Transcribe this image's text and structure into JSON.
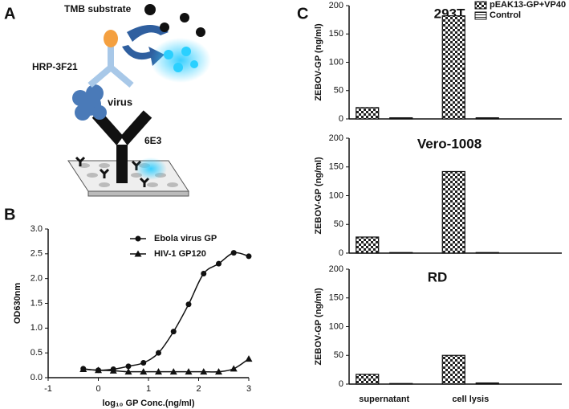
{
  "panels": [
    "A",
    "B",
    "C"
  ],
  "diagram": {
    "labels": [
      "TMB substrate",
      "HRP-3F21",
      "virus",
      "6E3"
    ]
  },
  "chart_data": [
    {
      "type": "scatter",
      "xlabel": "log₁₀ GP Conc.(ng/ml)",
      "ylabel": "OD630nm",
      "x": [
        -0.3,
        0,
        0.3,
        0.6,
        0.9,
        1.2,
        1.5,
        1.8,
        2.1,
        2.4,
        2.7,
        3.0
      ],
      "series": [
        {
          "name": "Ebola virus GP",
          "color": "#111111",
          "marker": "circle",
          "values": [
            0.18,
            0.15,
            0.17,
            0.23,
            0.3,
            0.5,
            0.93,
            1.48,
            2.1,
            2.3,
            2.52,
            2.45
          ]
        },
        {
          "name": "HIV-1 GP120",
          "color": "#111111",
          "marker": "triangle",
          "values": [
            0.17,
            0.15,
            0.14,
            0.12,
            0.12,
            0.12,
            0.12,
            0.12,
            0.12,
            0.12,
            0.18,
            0.38
          ]
        }
      ],
      "xlim": [
        -1,
        3
      ],
      "xticks": [
        -1,
        0,
        1,
        2,
        3
      ],
      "ylim": [
        0,
        3
      ],
      "yticks": [
        {
          "value": 0,
          "label": "0.0"
        },
        0.5,
        {
          "value": 1,
          "label": "1.0"
        },
        1.5,
        {
          "value": 2,
          "label": "2.0"
        },
        2.5,
        {
          "value": 3,
          "label": "3.0"
        }
      ]
    },
    {
      "type": "bar",
      "title": "293T",
      "ylabel": "ZEBOV-GP (ng/ml)",
      "categories": [
        null,
        null
      ],
      "series": [
        {
          "name": "pEAK13-GP+VP40",
          "color": "#111111",
          "pattern": "checker",
          "values": [
            20,
            182
          ]
        },
        {
          "name": "Control",
          "color": "#111111",
          "pattern": "hlines",
          "values": [
            2,
            2
          ]
        }
      ],
      "ylim": [
        0,
        200
      ],
      "yticks": [
        0,
        50,
        100,
        150,
        200
      ]
    },
    {
      "type": "bar",
      "title": "Vero-1008",
      "ylabel": "ZEBOV-GP (ng/ml)",
      "categories": [
        null,
        null
      ],
      "series": [
        {
          "color": "#111111",
          "pattern": "checker",
          "values": [
            28,
            142
          ]
        },
        {
          "color": "#111111",
          "pattern": "hlines",
          "values": [
            1,
            1
          ]
        }
      ],
      "ylim": [
        0,
        200
      ],
      "yticks": [
        0,
        50,
        100,
        150,
        200
      ]
    },
    {
      "type": "bar",
      "title": "RD",
      "ylabel": "ZEBOV-GP (ng/ml)",
      "categories": [
        "supernatant",
        "cell lysis"
      ],
      "series": [
        {
          "color": "#111111",
          "pattern": "checker",
          "values": [
            17,
            50
          ]
        },
        {
          "color": "#111111",
          "pattern": "hlines",
          "values": [
            1,
            2
          ]
        }
      ],
      "ylim": [
        0,
        200
      ],
      "yticks": [
        0,
        50,
        100,
        150,
        200
      ]
    }
  ]
}
